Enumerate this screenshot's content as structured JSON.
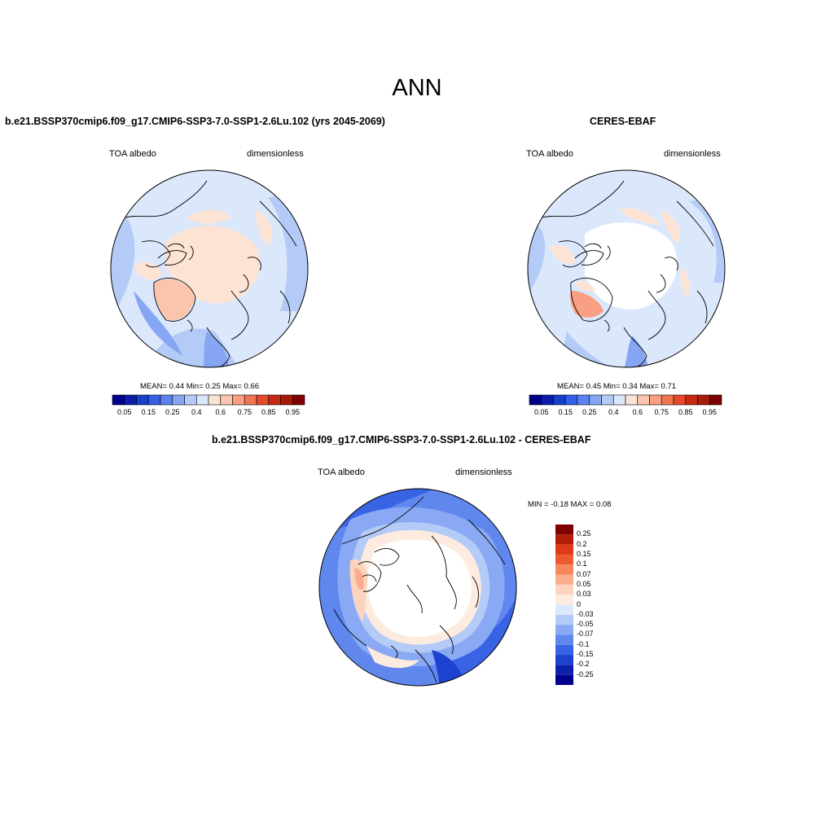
{
  "figure": {
    "title": "ANN"
  },
  "panels": [
    {
      "id": "model",
      "title": "b.e21.BSSP370cmip6.f09_g17.CMIP6-SSP3-7.0-SSP1-2.6Lu.102 (yrs 2045-2069)",
      "left_label": "TOA albedo",
      "right_label": "dimensionless",
      "stats_text": "MEAN=  0.44  Min=  0.25  Max=  0.66",
      "stats": {
        "mean": 0.44,
        "min": 0.25,
        "max": 0.66
      }
    },
    {
      "id": "obs",
      "title": "CERES-EBAF",
      "left_label": "TOA albedo",
      "right_label": "dimensionless",
      "stats_text": "MEAN=  0.45  Min=  0.34  Max=  0.71",
      "stats": {
        "mean": 0.45,
        "min": 0.34,
        "max": 0.71
      }
    },
    {
      "id": "diff",
      "title": "b.e21.BSSP370cmip6.f09_g17.CMIP6-SSP3-7.0-SSP1-2.6Lu.102 - CERES-EBAF",
      "left_label": "TOA albedo",
      "right_label": "dimensionless",
      "stats_text": "MIN =  -0.18 MAX =   0.08",
      "stats": {
        "min": -0.18,
        "max": 0.08
      }
    }
  ],
  "colorbars": {
    "field": {
      "colors": [
        "#00008c",
        "#0a1ea8",
        "#1640cc",
        "#3560e6",
        "#5a82f0",
        "#86a6f4",
        "#b4cbf8",
        "#dbe8fb",
        "#fce3d4",
        "#fbc4ad",
        "#f99f82",
        "#f07653",
        "#e4492b",
        "#c82812",
        "#a71b08",
        "#7f0000"
      ],
      "tick_labels": [
        "0.05",
        "0.15",
        "0.25",
        "0.4",
        "0.6",
        "0.75",
        "0.85",
        "0.95"
      ]
    },
    "diff": {
      "colors": [
        "#7f0000",
        "#b01e08",
        "#dc3a18",
        "#f05a30",
        "#f6875e",
        "#f9ad8c",
        "#fcd4bd",
        "#fcebde",
        "#dbe8fb",
        "#b4cbf8",
        "#8aa9f4",
        "#6087ee",
        "#3863e4",
        "#1d42d0",
        "#0c22aa",
        "#00008c"
      ],
      "tick_labels": [
        "0.25",
        "0.2",
        "0.15",
        "0.1",
        "0.07",
        "0.05",
        "0.03",
        "0",
        "-0.03",
        "-0.05",
        "-0.07",
        "-0.1",
        "-0.15",
        "-0.2",
        "-0.25"
      ]
    }
  }
}
